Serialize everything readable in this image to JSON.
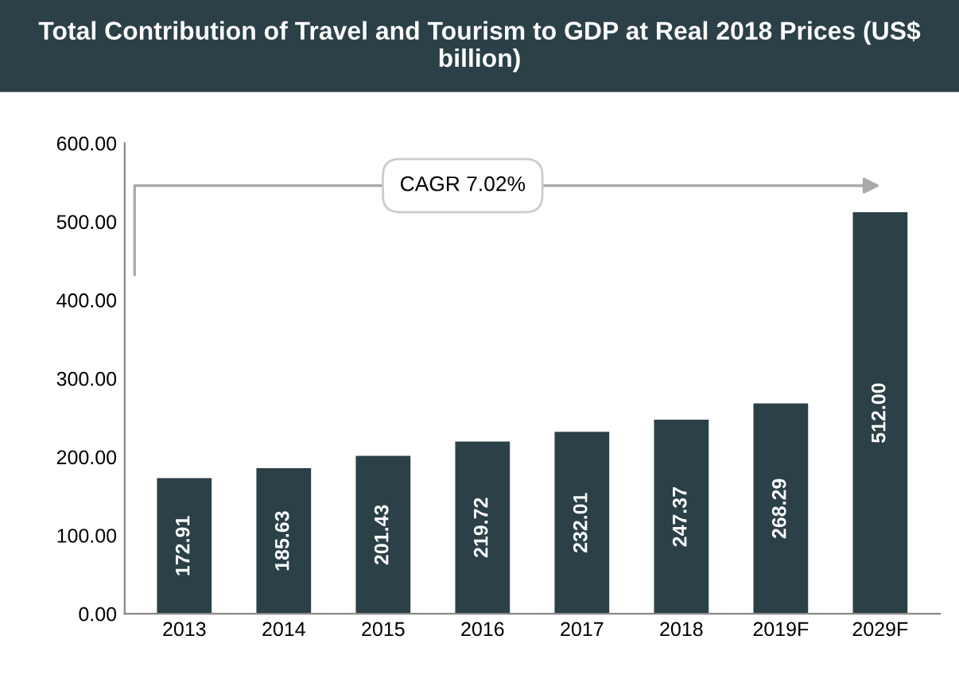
{
  "chart_data": {
    "type": "bar",
    "title": "Total Contribution of Travel and Tourism to GDP at Real 2018 Prices (US$ billion)",
    "categories": [
      "2013",
      "2014",
      "2015",
      "2016",
      "2017",
      "2018",
      "2019F",
      "2029F"
    ],
    "values": [
      172.91,
      185.63,
      201.43,
      219.72,
      232.01,
      247.37,
      268.29,
      512.0
    ],
    "value_labels": [
      "172.91",
      "185.63",
      "201.43",
      "219.72",
      "232.01",
      "247.37",
      "268.29",
      "512.00"
    ],
    "color": "#2b4047",
    "ylim": [
      0,
      600
    ],
    "yticks": [
      {
        "value": 0,
        "label": "0.00"
      },
      {
        "value": 100,
        "label": "100.00"
      },
      {
        "value": 200,
        "label": "200.00"
      },
      {
        "value": 300,
        "label": "300.00"
      },
      {
        "value": 400,
        "label": "400.00"
      },
      {
        "value": 500,
        "label": "500.00"
      },
      {
        "value": 600,
        "label": "600.00"
      }
    ],
    "annotations": [
      "CAGR 7.02%"
    ],
    "grid": false
  }
}
